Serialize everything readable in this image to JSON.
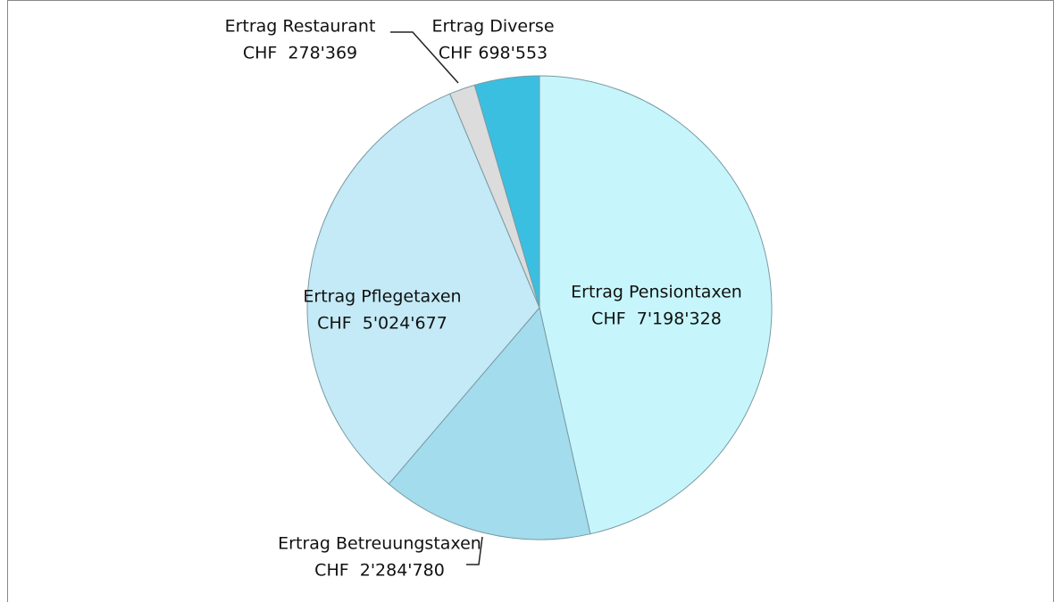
{
  "chart_data": {
    "type": "pie",
    "categories": [
      "Ertrag Pensiontaxen",
      "Ertrag Betreuungstaxen",
      "Ertrag Pflegetaxen",
      "Ertrag Restaurant",
      "Ertrag Diverse"
    ],
    "values": [
      7198328,
      2284780,
      5024677,
      278369,
      698553
    ],
    "value_labels": [
      "CHF  7'198'328",
      "CHF  2'284'780",
      "CHF  5'024'677",
      "CHF  278'369",
      "CHF 698'553"
    ],
    "colors": [
      "#c6f6fb",
      "#a3dcec",
      "#c3eaf6",
      "#dcdcdc",
      "#3bbfe1"
    ]
  }
}
